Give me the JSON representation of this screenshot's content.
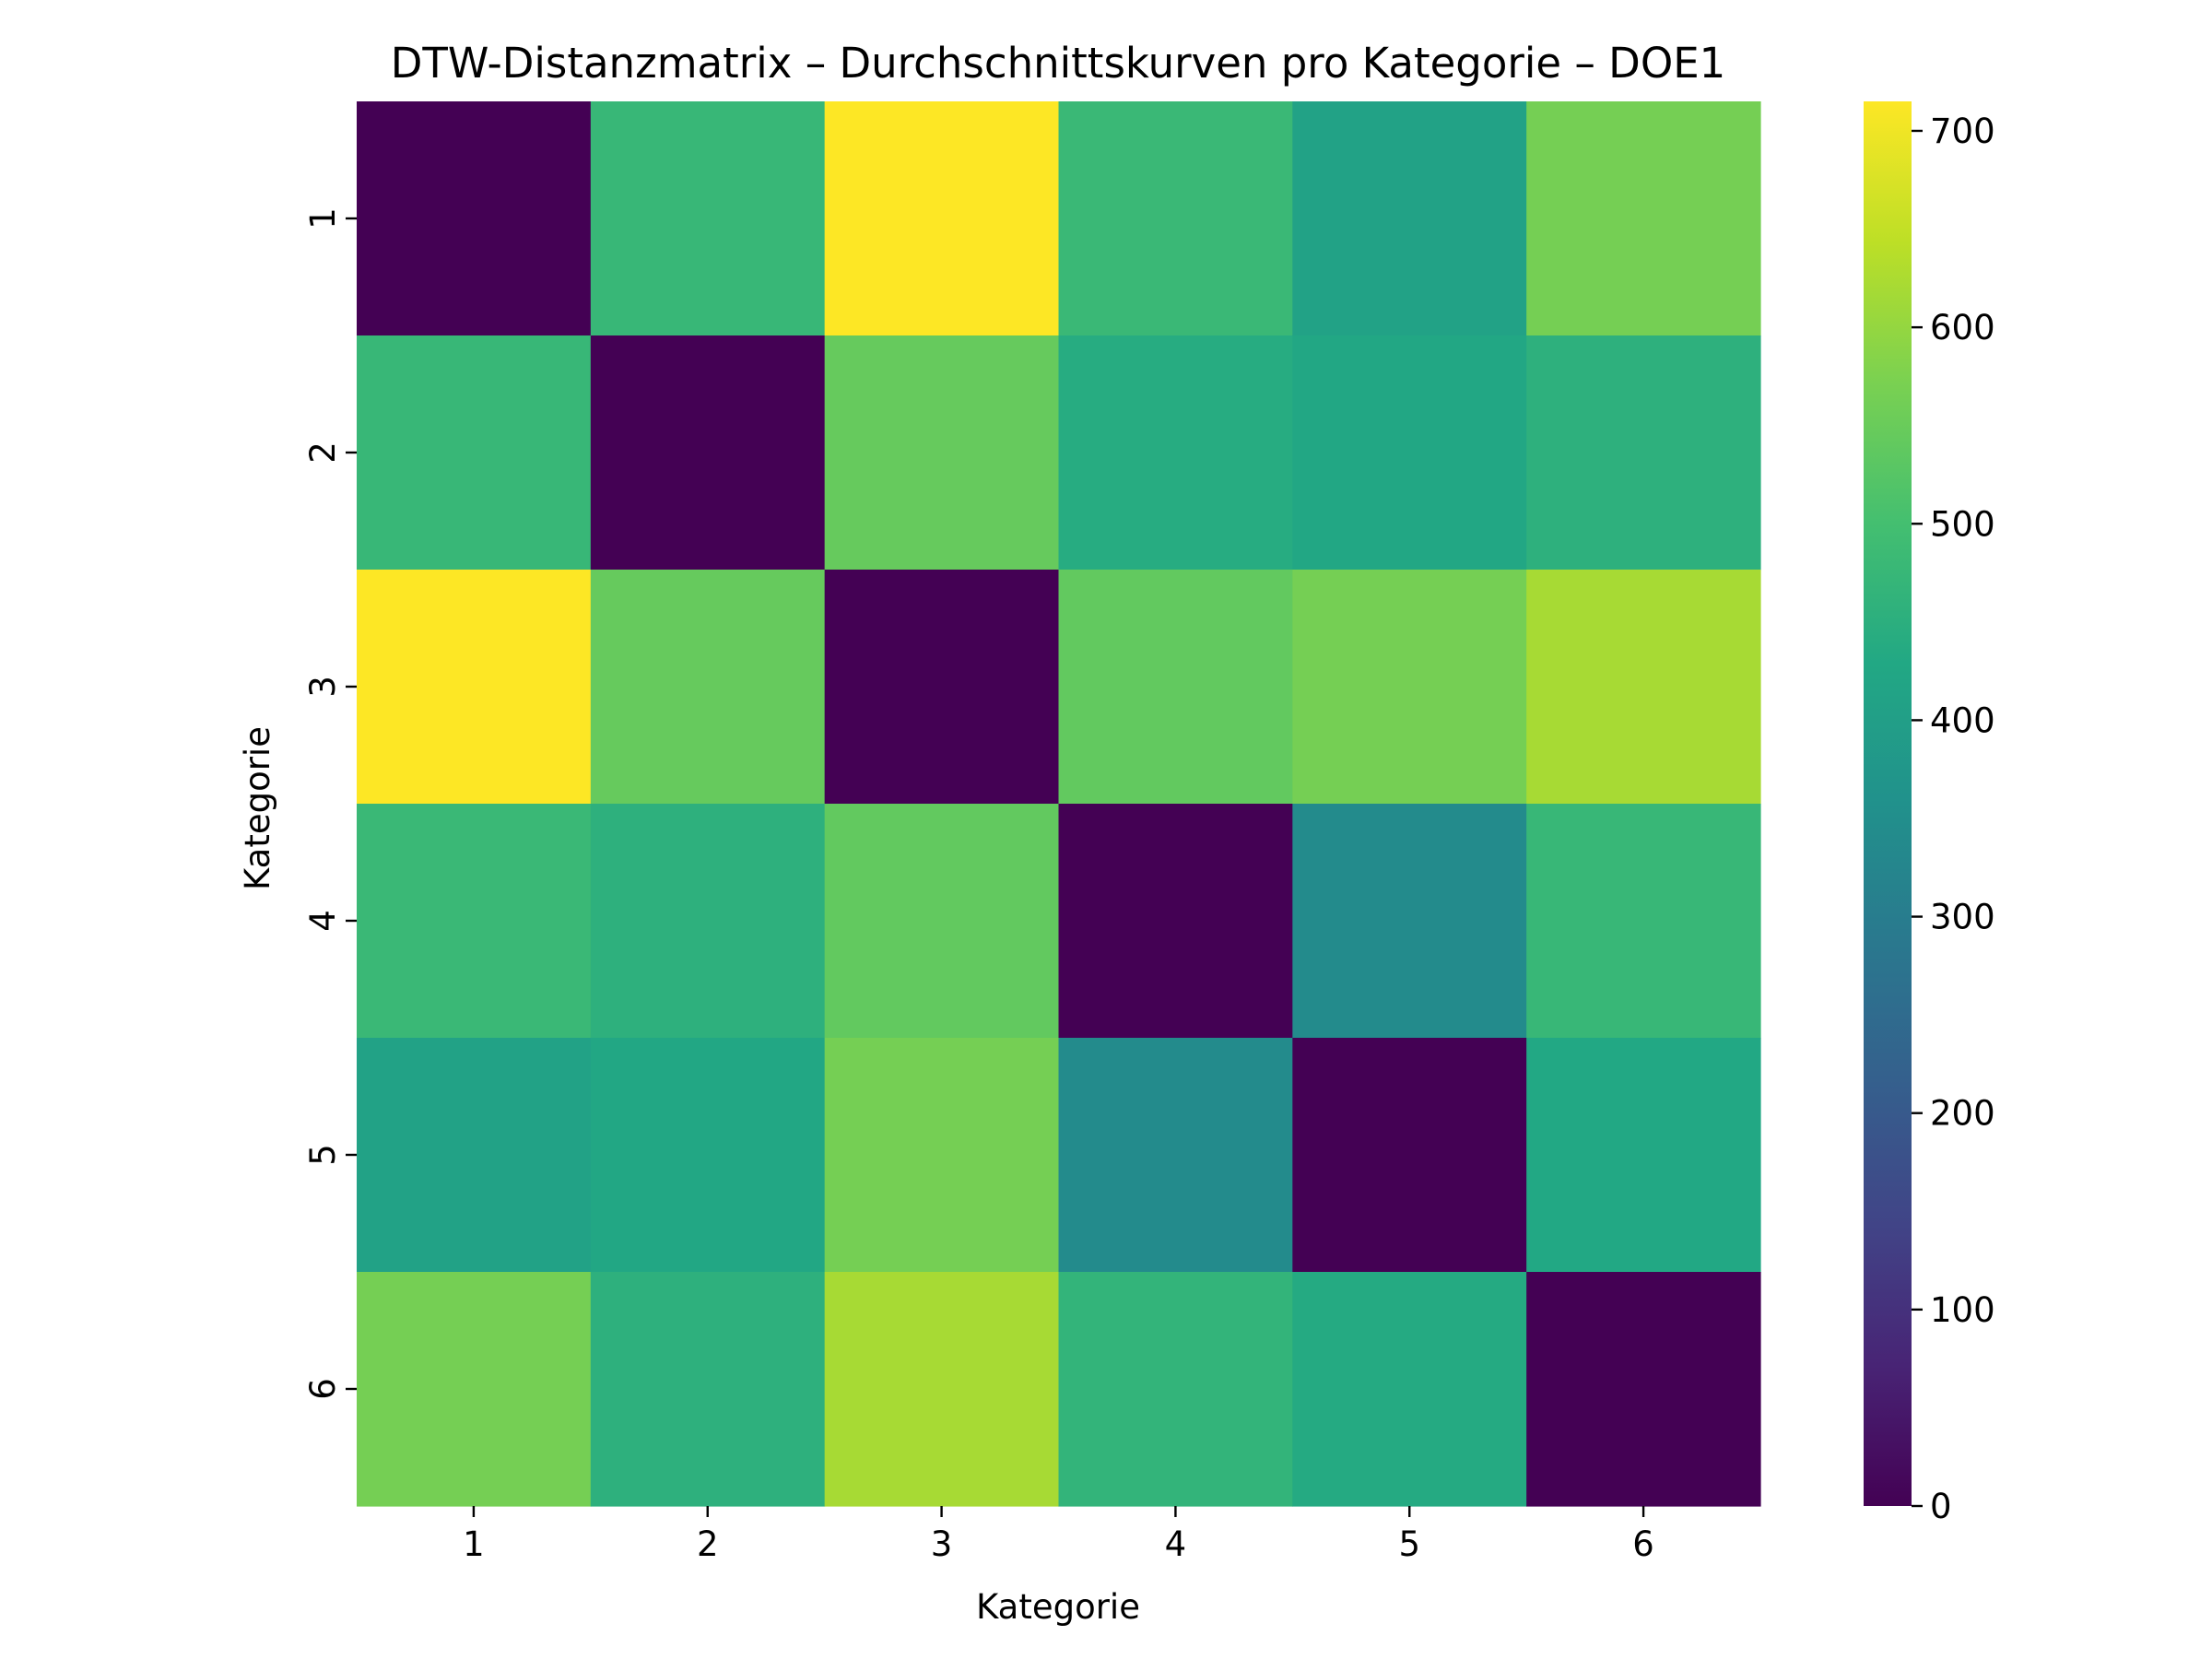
{
  "chart_data": {
    "type": "heatmap",
    "title": "DTW-Distanzmatrix – Durchschnittskurven pro Kategorie – DOE1",
    "xlabel": "Kategorie",
    "ylabel": "Kategorie",
    "x_categories": [
      "1",
      "2",
      "3",
      "4",
      "5",
      "6"
    ],
    "y_categories": [
      "1",
      "2",
      "3",
      "4",
      "5",
      "6"
    ],
    "values": [
      [
        0,
        475,
        715,
        480,
        410,
        565
      ],
      [
        475,
        0,
        545,
        440,
        425,
        455
      ],
      [
        715,
        545,
        0,
        540,
        565,
        620
      ],
      [
        480,
        455,
        540,
        0,
        340,
        475
      ],
      [
        410,
        425,
        565,
        340,
        0,
        430
      ],
      [
        565,
        455,
        620,
        465,
        435,
        0
      ]
    ],
    "colormap": "viridis",
    "colorbar": {
      "min": 0,
      "max": 715,
      "ticks": [
        0,
        100,
        200,
        300,
        400,
        500,
        600,
        700
      ]
    },
    "ylim": [
      0,
      715
    ],
    "grid": false
  }
}
